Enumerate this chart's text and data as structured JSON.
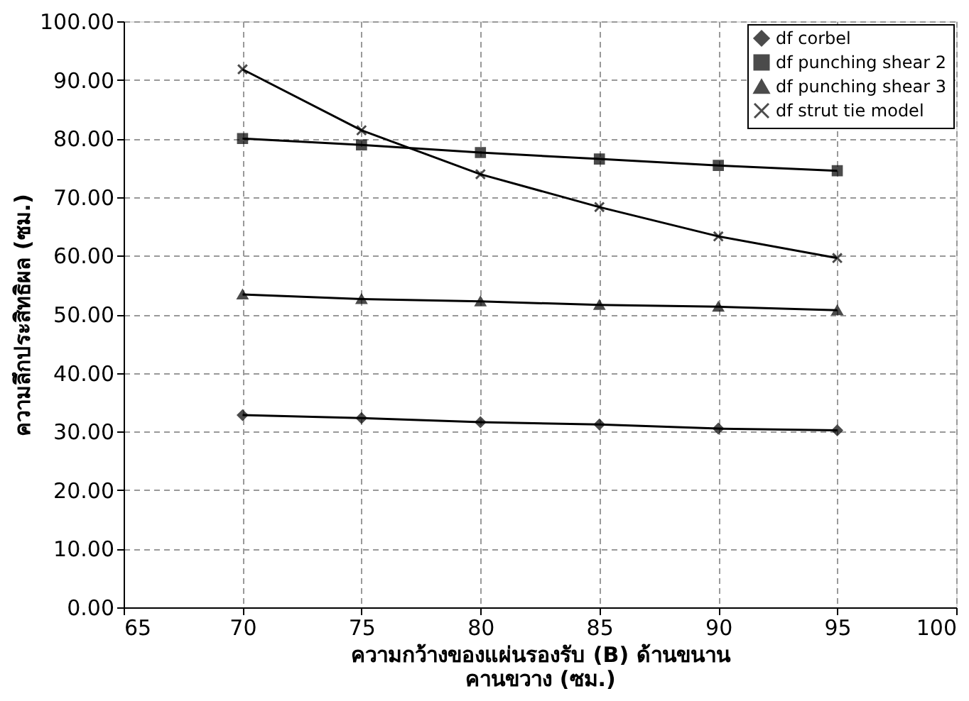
{
  "chart_data": {
    "type": "line",
    "xlabel": "ความกว้างของแผ่นรองรับ (B) ด้านขนาน\nคานขวาง (ซม.)",
    "ylabel": "ความลึกประสิทธิผล (ซม.)",
    "x": [
      70,
      75,
      80,
      85,
      90,
      95
    ],
    "series": [
      {
        "name": "df corbel",
        "color": "#000000",
        "marker": "diamond",
        "values": [
          32.8,
          32.3,
          31.6,
          31.2,
          30.5,
          30.2
        ]
      },
      {
        "name": "df punching shear 2",
        "color": "#000000",
        "marker": "square",
        "values": [
          80.0,
          78.9,
          77.6,
          76.5,
          75.4,
          74.5
        ]
      },
      {
        "name": "df punching shear 3",
        "color": "#000000",
        "marker": "triangle",
        "values": [
          53.4,
          52.6,
          52.2,
          51.6,
          51.3,
          50.7
        ]
      },
      {
        "name": "df strut tie model",
        "color": "#000000",
        "marker": "cross",
        "values": [
          91.8,
          81.4,
          73.9,
          68.3,
          63.3,
          59.6
        ]
      }
    ],
    "xlim": [
      65,
      100
    ],
    "xticks": [
      65,
      70,
      75,
      80,
      85,
      90,
      95,
      100
    ],
    "ylim": [
      0,
      100
    ],
    "yticks": [
      {
        "value": 0,
        "label": "0.00"
      },
      {
        "value": 10,
        "label": "10.00"
      },
      {
        "value": 20,
        "label": "20.00"
      },
      {
        "value": 30,
        "label": "30.00"
      },
      {
        "value": 40,
        "label": "40.00"
      },
      {
        "value": 50,
        "label": "50.00"
      },
      {
        "value": 60,
        "label": "60.00"
      },
      {
        "value": 70,
        "label": "70.00"
      },
      {
        "value": 80,
        "label": "80.00"
      },
      {
        "value": 90,
        "label": "90.00"
      },
      {
        "value": 100,
        "label": "100.00"
      }
    ],
    "grid": true,
    "legend": "top right",
    "line_style": "solid"
  }
}
